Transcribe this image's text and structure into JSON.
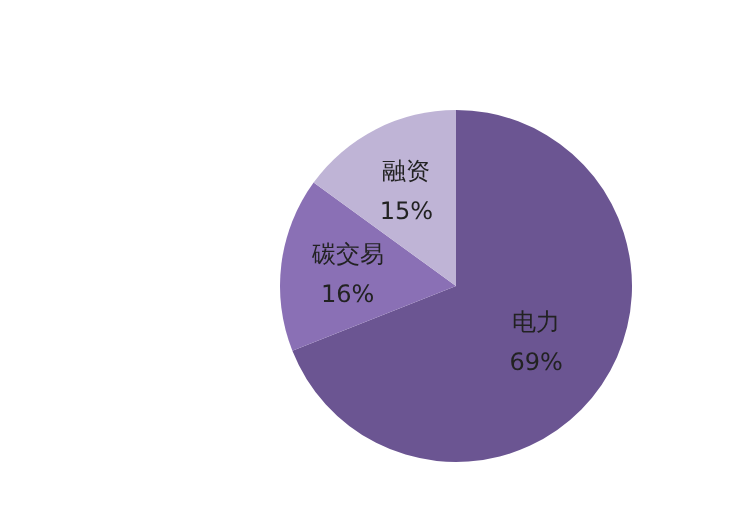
{
  "chart_data": {
    "type": "pie",
    "categories": [
      "电力",
      "碳交易",
      "融资"
    ],
    "values": [
      69,
      16,
      15
    ],
    "colors": [
      "#6b5592",
      "#8a70b5",
      "#bfb4d6"
    ],
    "value_labels": [
      "69%",
      "16%",
      "15%"
    ]
  }
}
